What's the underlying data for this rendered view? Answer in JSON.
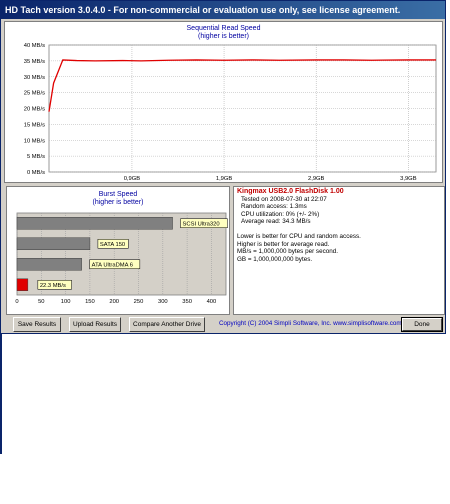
{
  "window": {
    "title": "HD Tach version 3.0.4.0  - For non-commercial or evaluation use only, see license agreement."
  },
  "read_chart": {
    "title": "Sequential Read Speed",
    "subtitle": "(higher is better)",
    "y_ticks": [
      "40 MB/s",
      "35 MB/s",
      "30 MB/s",
      "25 MB/s",
      "20 MB/s",
      "15 MB/s",
      "10 MB/s",
      "5 MB/s",
      "0 MB/s"
    ],
    "x_ticks": [
      "0,9GB",
      "1,9GB",
      "2,9GB",
      "3,9GB"
    ]
  },
  "burst_chart": {
    "title": "Burst Speed",
    "subtitle": "(higher is better)",
    "x_ticks": [
      "0",
      "50",
      "100",
      "150",
      "200",
      "250",
      "300",
      "350",
      "400"
    ],
    "bar_labels": [
      "SCSI Ultra320",
      "SATA 150",
      "ATA UltraDMA 6",
      "22.3 MB/s"
    ]
  },
  "info": {
    "drive": "Kingmax USB2.0 FlashDisk 1.00",
    "tested": "Tested on 2008-07-30 at 22:07",
    "random": "Random access: 1.3ms",
    "cpu": "CPU utilization: 0% (+/- 2%)",
    "avg": "Average read: 34.3 MB/s",
    "note1": "Lower is better for CPU and random access.",
    "note2": "Higher is better for average read.",
    "note3": "MB/s = 1,000,000 bytes per second.",
    "note4": "GB = 1,000,000,000 bytes."
  },
  "buttons": {
    "save": "Save Results",
    "upload": "Upload Results",
    "compare": "Compare Another Drive",
    "done": "Done"
  },
  "copyright": "Copyright (C) 2004 Simpli Software, Inc. www.simplisoftware.com",
  "colors": {
    "read_line": "#e00000",
    "bar_gray": "#808080",
    "burst_bar": "#e00000",
    "title_blue": "#0000a0"
  },
  "chart_data": [
    {
      "type": "line",
      "title": "Sequential Read Speed",
      "subtitle": "(higher is better)",
      "ylabel": "",
      "xlabel": "",
      "ylim": [
        0,
        40
      ],
      "x_unit": "GB",
      "series": [
        {
          "x": [
            0,
            0.05,
            0.15,
            0.3,
            0.5,
            0.8,
            1.0,
            1.3,
            1.6,
            1.9,
            2.2,
            2.5,
            2.9,
            3.2,
            3.5,
            3.9,
            4.2
          ],
          "y": [
            19,
            28,
            35.3,
            35.1,
            35.0,
            35.1,
            35.0,
            35.2,
            35.3,
            35.2,
            35.3,
            35.2,
            35.3,
            35.3,
            35.2,
            35.3,
            35.3
          ]
        }
      ],
      "x_ticks": [
        0.9,
        1.9,
        2.9,
        3.9
      ],
      "grid": true
    },
    {
      "type": "bar",
      "orientation": "horizontal",
      "title": "Burst Speed",
      "subtitle": "(higher is better)",
      "categories": [
        "SCSI Ultra320",
        "SATA 150",
        "ATA UltraDMA 6",
        "22.3 MB/s"
      ],
      "values": [
        320,
        150,
        133,
        22.3
      ],
      "xlim": [
        0,
        430
      ],
      "grid": true
    }
  ]
}
